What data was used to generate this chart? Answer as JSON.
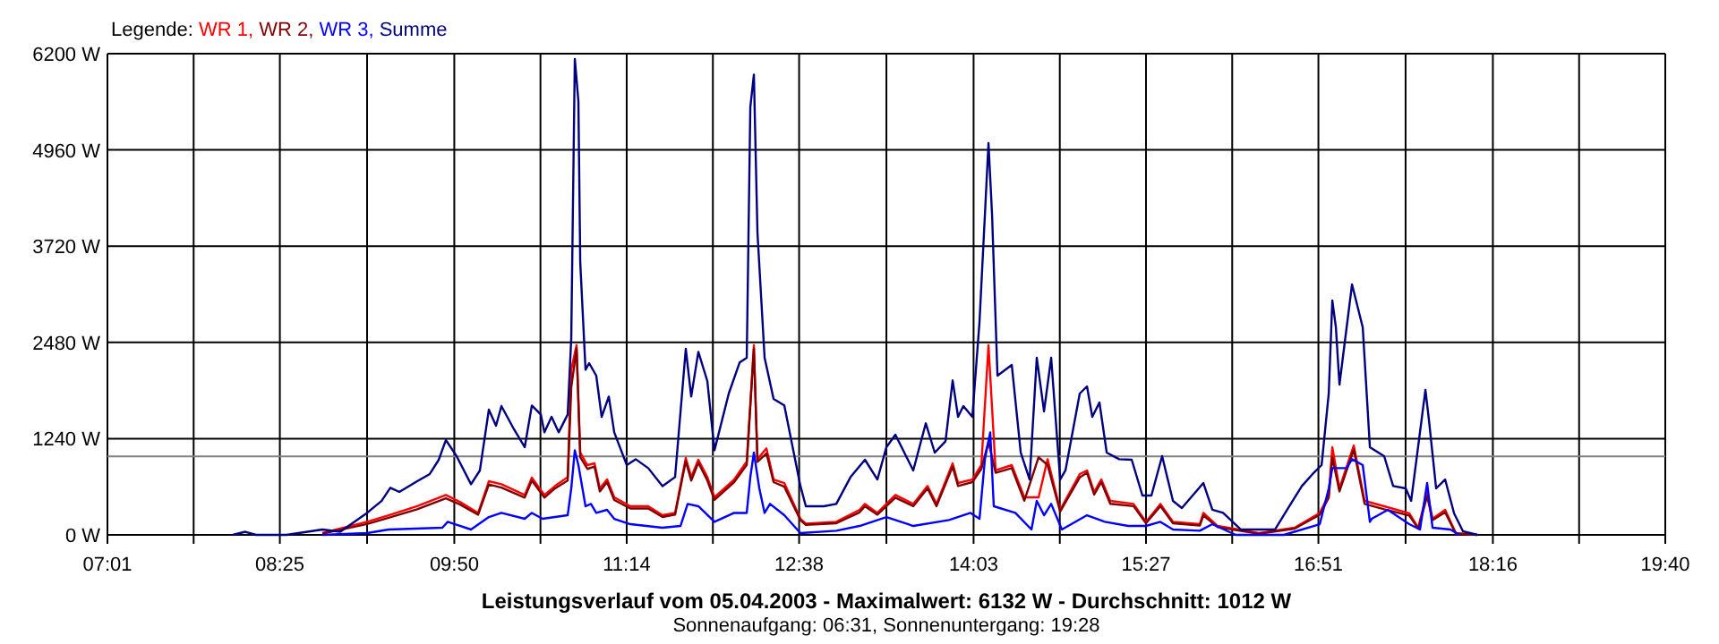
{
  "chart_data": {
    "type": "line",
    "title": "Leistungsverlauf vom 05.04.2003 - Maximalwert: 6132 W - Durchschnitt: 1012 W",
    "subtitle": "Sonnenaufgang: 06:31, Sonnenuntergang: 19:28",
    "legend_title": "Legende:",
    "legend": "top left",
    "grid": true,
    "marker": "none",
    "line_style": "solid",
    "xlim": [
      7.0167,
      19.6667
    ],
    "xticks": [
      {
        "value": 7.0167,
        "label": "07:01"
      },
      {
        "value": 7.7167,
        "label": null
      },
      {
        "value": 8.4167,
        "label": "08:25"
      },
      {
        "value": 9.125,
        "label": null
      },
      {
        "value": 9.8333,
        "label": "09:50"
      },
      {
        "value": 10.533,
        "label": null
      },
      {
        "value": 11.2333,
        "label": "11:14"
      },
      {
        "value": 11.933,
        "label": null
      },
      {
        "value": 12.6333,
        "label": "12:38"
      },
      {
        "value": 13.342,
        "label": null
      },
      {
        "value": 14.05,
        "label": "14:03"
      },
      {
        "value": 14.75,
        "label": null
      },
      {
        "value": 15.45,
        "label": "15:27"
      },
      {
        "value": 16.15,
        "label": null
      },
      {
        "value": 16.85,
        "label": "16:51"
      },
      {
        "value": 17.558,
        "label": null
      },
      {
        "value": 18.2667,
        "label": "18:16"
      },
      {
        "value": 18.967,
        "label": null
      },
      {
        "value": 19.6667,
        "label": "19:40"
      }
    ],
    "ylim": [
      0,
      6200
    ],
    "yticks": [
      {
        "value": 0,
        "label": "0 W"
      },
      {
        "value": 1240,
        "label": "1240 W"
      },
      {
        "value": 2480,
        "label": "2480 W"
      },
      {
        "value": 3720,
        "label": "3720 W"
      },
      {
        "value": 4960,
        "label": "4960 W"
      },
      {
        "value": 6200,
        "label": "6200 W"
      }
    ],
    "ref_lines": [
      {
        "axis": "y",
        "value": 1012,
        "color": "#808080"
      }
    ],
    "series": [
      {
        "name": "WR 1,",
        "color": "#ff0000",
        "x": [
          8.762,
          9.125,
          9.3,
          9.532,
          9.765,
          9.881,
          10.027,
          10.114,
          10.216,
          10.405,
          10.463,
          10.565,
          10.652,
          10.754,
          10.783,
          10.826,
          10.856,
          10.914,
          10.972,
          11.015,
          11.074,
          11.132,
          11.263,
          11.408,
          11.524,
          11.626,
          11.713,
          11.757,
          11.815,
          11.888,
          11.946,
          12.106,
          12.208,
          12.266,
          12.295,
          12.368,
          12.426,
          12.513,
          12.644,
          12.688,
          12.935,
          13.124,
          13.168,
          13.269,
          13.415,
          13.56,
          13.676,
          13.749,
          13.88,
          13.924,
          14.04,
          14.113,
          14.171,
          14.229,
          14.36,
          14.462,
          14.578,
          14.651,
          14.753,
          14.912,
          14.971,
          15.029,
          15.087,
          15.16,
          15.349,
          15.45,
          15.567,
          15.669,
          15.887,
          15.916,
          16.032,
          16.367,
          16.657,
          16.861,
          16.934,
          16.963,
          17.021,
          17.137,
          17.225,
          17.384,
          17.588,
          17.661,
          17.733,
          17.777,
          17.879,
          17.966,
          18.141
        ],
        "values": [
          23,
          168,
          253,
          369,
          514,
          422,
          283,
          691,
          653,
          514,
          737,
          514,
          630,
          745,
          2128,
          2443,
          1060,
          899,
          922,
          599,
          714,
          484,
          369,
          369,
          253,
          283,
          991,
          745,
          968,
          745,
          484,
          714,
          945,
          2443,
          975,
          1114,
          714,
          668,
          207,
          145,
          168,
          323,
          399,
          283,
          514,
          399,
          630,
          399,
          922,
          668,
          714,
          899,
          2443,
          830,
          899,
          484,
          484,
          975,
          323,
          784,
          830,
          553,
          714,
          438,
          399,
          168,
          399,
          168,
          138,
          283,
          115,
          23,
          92,
          283,
          514,
          1130,
          600,
          1152,
          438,
          369,
          277,
          92,
          553,
          207,
          323,
          23,
          0
        ]
      },
      {
        "name": "WR 2,",
        "color": "#800000",
        "x": [
          8.762,
          9.125,
          9.3,
          9.532,
          9.765,
          9.881,
          10.027,
          10.114,
          10.216,
          10.405,
          10.463,
          10.565,
          10.652,
          10.754,
          10.783,
          10.826,
          10.856,
          10.914,
          10.972,
          11.015,
          11.074,
          11.132,
          11.263,
          11.408,
          11.524,
          11.626,
          11.713,
          11.757,
          11.815,
          11.888,
          11.946,
          12.106,
          12.208,
          12.266,
          12.295,
          12.368,
          12.426,
          12.513,
          12.644,
          12.688,
          12.935,
          13.124,
          13.168,
          13.269,
          13.415,
          13.56,
          13.676,
          13.749,
          13.88,
          13.924,
          14.04,
          14.113,
          14.171,
          14.229,
          14.36,
          14.462,
          14.578,
          14.651,
          14.753,
          14.912,
          14.971,
          15.029,
          15.087,
          15.16,
          15.349,
          15.45,
          15.567,
          15.669,
          15.887,
          15.916,
          16.032,
          16.367,
          16.657,
          16.861,
          16.934,
          16.963,
          17.021,
          17.137,
          17.225,
          17.384,
          17.588,
          17.661,
          17.733,
          17.777,
          17.879,
          17.966,
          18.141
        ],
        "values": [
          15,
          140,
          220,
          330,
          470,
          390,
          260,
          650,
          610,
          480,
          700,
          480,
          600,
          700,
          1900,
          2400,
          1000,
          850,
          880,
          560,
          680,
          450,
          340,
          340,
          230,
          260,
          950,
          700,
          930,
          700,
          450,
          680,
          900,
          2400,
          940,
          1050,
          680,
          620,
          190,
          130,
          150,
          290,
          370,
          260,
          480,
          370,
          600,
          370,
          880,
          630,
          680,
          850,
          1200,
          800,
          860,
          440,
          1000,
          900,
          300,
          740,
          800,
          520,
          680,
          400,
          370,
          150,
          370,
          150,
          120,
          250,
          100,
          15,
          80,
          260,
          480,
          1000,
          560,
          1100,
          400,
          330,
          250,
          80,
          500,
          190,
          290,
          15,
          0
        ]
      },
      {
        "name": "WR 3,",
        "color": "#0000ff",
        "x": [
          8.762,
          9.125,
          9.3,
          9.736,
          9.78,
          9.969,
          10.114,
          10.216,
          10.405,
          10.463,
          10.55,
          10.754,
          10.783,
          10.812,
          10.841,
          10.899,
          10.943,
          10.986,
          11.074,
          11.132,
          11.263,
          11.524,
          11.67,
          11.728,
          11.815,
          11.946,
          12.106,
          12.208,
          12.237,
          12.266,
          12.31,
          12.353,
          12.397,
          12.513,
          12.644,
          12.935,
          13.124,
          13.168,
          13.342,
          13.56,
          13.851,
          14.025,
          14.098,
          14.142,
          14.185,
          14.214,
          14.389,
          14.52,
          14.563,
          14.622,
          14.68,
          14.767,
          14.971,
          15.116,
          15.305,
          15.45,
          15.567,
          15.669,
          15.887,
          15.989,
          16.178,
          16.57,
          16.861,
          16.934,
          16.963,
          17.079,
          17.123,
          17.21,
          17.268,
          17.283,
          17.414,
          17.588,
          17.675,
          17.733,
          17.777,
          17.922,
          17.995
        ],
        "values": [
          0,
          23,
          69,
          92,
          168,
          69,
          230,
          283,
          207,
          283,
          207,
          253,
          599,
          1090,
          899,
          369,
          399,
          283,
          323,
          207,
          138,
          92,
          115,
          399,
          369,
          168,
          283,
          283,
          745,
          1060,
          599,
          283,
          399,
          253,
          23,
          53,
          115,
          138,
          230,
          115,
          191,
          283,
          207,
          975,
          1321,
          369,
          283,
          69,
          438,
          253,
          399,
          69,
          253,
          168,
          115,
          115,
          168,
          69,
          53,
          138,
          0,
          0,
          138,
          599,
          860,
          860,
          975,
          899,
          168,
          207,
          323,
          138,
          69,
          668,
          92,
          69,
          0
        ]
      },
      {
        "name": "Summe",
        "color": "#000080",
        "x": [
          8.035,
          8.136,
          8.224,
          8.471,
          8.762,
          8.907,
          9.125,
          9.242,
          9.314,
          9.387,
          9.532,
          9.634,
          9.707,
          9.765,
          9.852,
          9.969,
          10.041,
          10.114,
          10.172,
          10.216,
          10.318,
          10.405,
          10.463,
          10.536,
          10.565,
          10.623,
          10.681,
          10.754,
          10.783,
          10.812,
          10.841,
          10.856,
          10.899,
          10.928,
          10.986,
          11.03,
          11.088,
          11.132,
          11.234,
          11.306,
          11.408,
          11.524,
          11.626,
          11.713,
          11.757,
          11.815,
          11.888,
          11.946,
          12.062,
          12.15,
          12.208,
          12.237,
          12.266,
          12.295,
          12.353,
          12.426,
          12.513,
          12.644,
          12.688,
          12.833,
          12.935,
          13.051,
          13.168,
          13.269,
          13.342,
          13.415,
          13.56,
          13.662,
          13.735,
          13.822,
          13.88,
          13.924,
          13.967,
          14.04,
          14.098,
          14.142,
          14.171,
          14.2,
          14.244,
          14.36,
          14.433,
          14.505,
          14.563,
          14.622,
          14.68,
          14.753,
          14.796,
          14.912,
          14.971,
          15.014,
          15.072,
          15.131,
          15.232,
          15.334,
          15.421,
          15.494,
          15.581,
          15.669,
          15.741,
          15.916,
          15.989,
          16.076,
          16.221,
          16.497,
          16.614,
          16.716,
          16.803,
          16.876,
          16.934,
          16.963,
          16.992,
          17.021,
          17.123,
          17.21,
          17.268,
          17.384,
          17.457,
          17.559,
          17.603,
          17.719,
          17.748,
          17.806,
          17.879,
          17.952,
          18.024,
          18.141
        ],
        "values": [
          0,
          40,
          0,
          0,
          69,
          40,
          283,
          437,
          607,
          553,
          691,
          784,
          968,
          1222,
          1014,
          653,
          830,
          1614,
          1406,
          1660,
          1360,
          1130,
          1667,
          1551,
          1321,
          1521,
          1321,
          1551,
          2535,
          6132,
          5585,
          3510,
          2128,
          2213,
          2051,
          1521,
          1782,
          1321,
          899,
          975,
          860,
          629,
          745,
          2397,
          1782,
          2358,
          1982,
          1090,
          1821,
          2220,
          2282,
          5509,
          5931,
          3895,
          2282,
          1752,
          1667,
          629,
          369,
          369,
          399,
          745,
          968,
          714,
          1130,
          1290,
          830,
          1437,
          1060,
          1206,
          1990,
          1521,
          1660,
          1521,
          2743,
          4126,
          5048,
          4126,
          2051,
          2190,
          1060,
          714,
          2282,
          1591,
          2282,
          714,
          830,
          1821,
          1913,
          1521,
          1706,
          1060,
          975,
          968,
          507,
          507,
          1014,
          438,
          346,
          668,
          323,
          283,
          69,
          69,
          369,
          630,
          784,
          899,
          1821,
          3019,
          2674,
          1936,
          3227,
          2674,
          1130,
          1014,
          630,
          599,
          438,
          1867,
          1475,
          599,
          714,
          277,
          46,
          0
        ]
      }
    ]
  }
}
